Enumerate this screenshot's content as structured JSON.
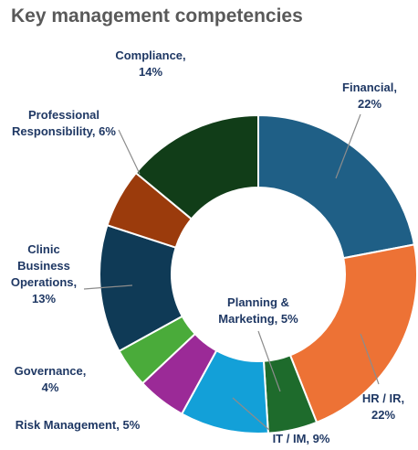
{
  "chart_data": {
    "type": "donut",
    "title": "Key management competencies",
    "categories": [
      "Financial,",
      "HR / IR,",
      "Planning & Marketing,",
      "IT / IM,",
      "Risk Management,",
      "Governance,",
      "Clinic Business Operations,",
      "Professional Responsibility,",
      "Compliance,"
    ],
    "values": [
      22,
      22,
      5,
      9,
      5,
      4,
      13,
      6,
      14
    ],
    "value_labels": [
      "22%",
      "22%",
      "5%",
      "9%",
      "5%",
      "4%",
      "13%",
      "6%",
      "14%"
    ],
    "colors": [
      "#1f5f86",
      "#ed7235",
      "#1e6b2c",
      "#13a0d8",
      "#9b2a97",
      "#4aab3a",
      "#0f3a56",
      "#9b3b0c",
      "#113d18"
    ]
  }
}
